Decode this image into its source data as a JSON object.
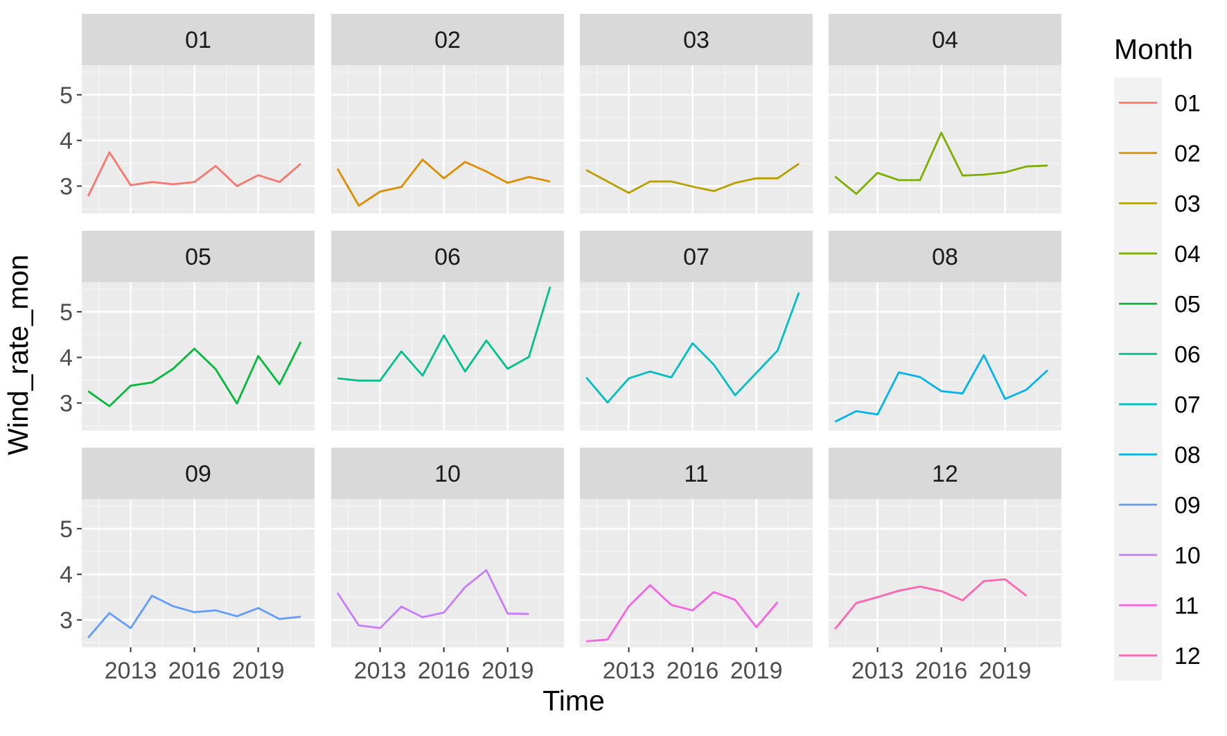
{
  "chart_data": {
    "type": "line",
    "xlabel": "Time",
    "ylabel": "Wind_rate_mon",
    "x": [
      2011,
      2012,
      2013,
      2014,
      2015,
      2016,
      2017,
      2018,
      2019,
      2020,
      2021
    ],
    "xticks": [
      2013,
      2016,
      2019
    ],
    "xtick_labels": [
      "2013",
      "2016",
      "2019"
    ],
    "xlim": [
      2010.7,
      2021.65
    ],
    "yticks": [
      3,
      4,
      5
    ],
    "ytick_labels": [
      "3",
      "4",
      "5"
    ],
    "ylim": [
      2.4,
      5.65
    ],
    "grid": true,
    "facet_layout": "3 rows x 4 columns",
    "legend": {
      "title": "Month",
      "position": "right"
    },
    "series": [
      {
        "name": "01",
        "color": "#F8766D",
        "values": [
          2.78,
          3.74,
          3.02,
          3.09,
          3.04,
          3.09,
          3.44,
          3.0,
          3.24,
          3.09,
          3.49
        ]
      },
      {
        "name": "02",
        "color": "#DE8C00",
        "values": [
          3.38,
          2.57,
          2.88,
          2.98,
          3.58,
          3.17,
          3.53,
          3.32,
          3.07,
          3.2,
          3.1
        ]
      },
      {
        "name": "03",
        "color": "#B79F00",
        "values": [
          3.35,
          3.1,
          2.85,
          3.1,
          3.1,
          2.99,
          2.89,
          3.07,
          3.17,
          3.17,
          3.49
        ]
      },
      {
        "name": "04",
        "color": "#7CAE00",
        "values": [
          3.21,
          2.83,
          3.29,
          3.13,
          3.13,
          4.17,
          3.23,
          3.25,
          3.3,
          3.43,
          3.45
        ]
      },
      {
        "name": "05",
        "color": "#00BA38",
        "values": [
          3.26,
          2.93,
          3.38,
          3.45,
          3.75,
          4.19,
          3.74,
          2.99,
          4.03,
          3.41,
          4.34
        ]
      },
      {
        "name": "06",
        "color": "#00C08B",
        "values": [
          3.54,
          3.49,
          3.49,
          4.13,
          3.6,
          4.48,
          3.69,
          4.37,
          3.75,
          4.01,
          5.55
        ]
      },
      {
        "name": "07",
        "color": "#00BFC4",
        "values": [
          3.56,
          3.01,
          3.54,
          3.69,
          3.56,
          4.31,
          3.84,
          3.17,
          3.66,
          4.15,
          5.42
        ]
      },
      {
        "name": "08",
        "color": "#00B4F0",
        "values": [
          2.59,
          2.82,
          2.75,
          3.67,
          3.57,
          3.26,
          3.21,
          4.05,
          3.09,
          3.29,
          3.72
        ]
      },
      {
        "name": "09",
        "color": "#619CFF",
        "values": [
          2.61,
          3.15,
          2.82,
          3.53,
          3.3,
          3.17,
          3.21,
          3.08,
          3.26,
          3.02,
          3.07
        ]
      },
      {
        "name": "10",
        "color": "#C77CFF",
        "values": [
          3.59,
          2.88,
          2.82,
          3.29,
          3.06,
          3.16,
          3.72,
          4.09,
          3.14,
          3.13,
          null
        ]
      },
      {
        "name": "11",
        "color": "#F564E3",
        "values": [
          2.53,
          2.57,
          3.3,
          3.76,
          3.33,
          3.21,
          3.61,
          3.44,
          2.84,
          3.39,
          null
        ]
      },
      {
        "name": "12",
        "color": "#FF64B0",
        "values": [
          2.8,
          3.37,
          3.5,
          3.64,
          3.73,
          3.63,
          3.43,
          3.85,
          3.89,
          3.53,
          null
        ]
      }
    ]
  },
  "colors": {
    "panel_background": "#EBEBEB",
    "strip_background": "#D9D9D9",
    "grid_major": "#FFFFFF",
    "grid_minor": "#F5F5F5",
    "tick": "#333333",
    "legend_key_background": "#F2F2F2"
  }
}
